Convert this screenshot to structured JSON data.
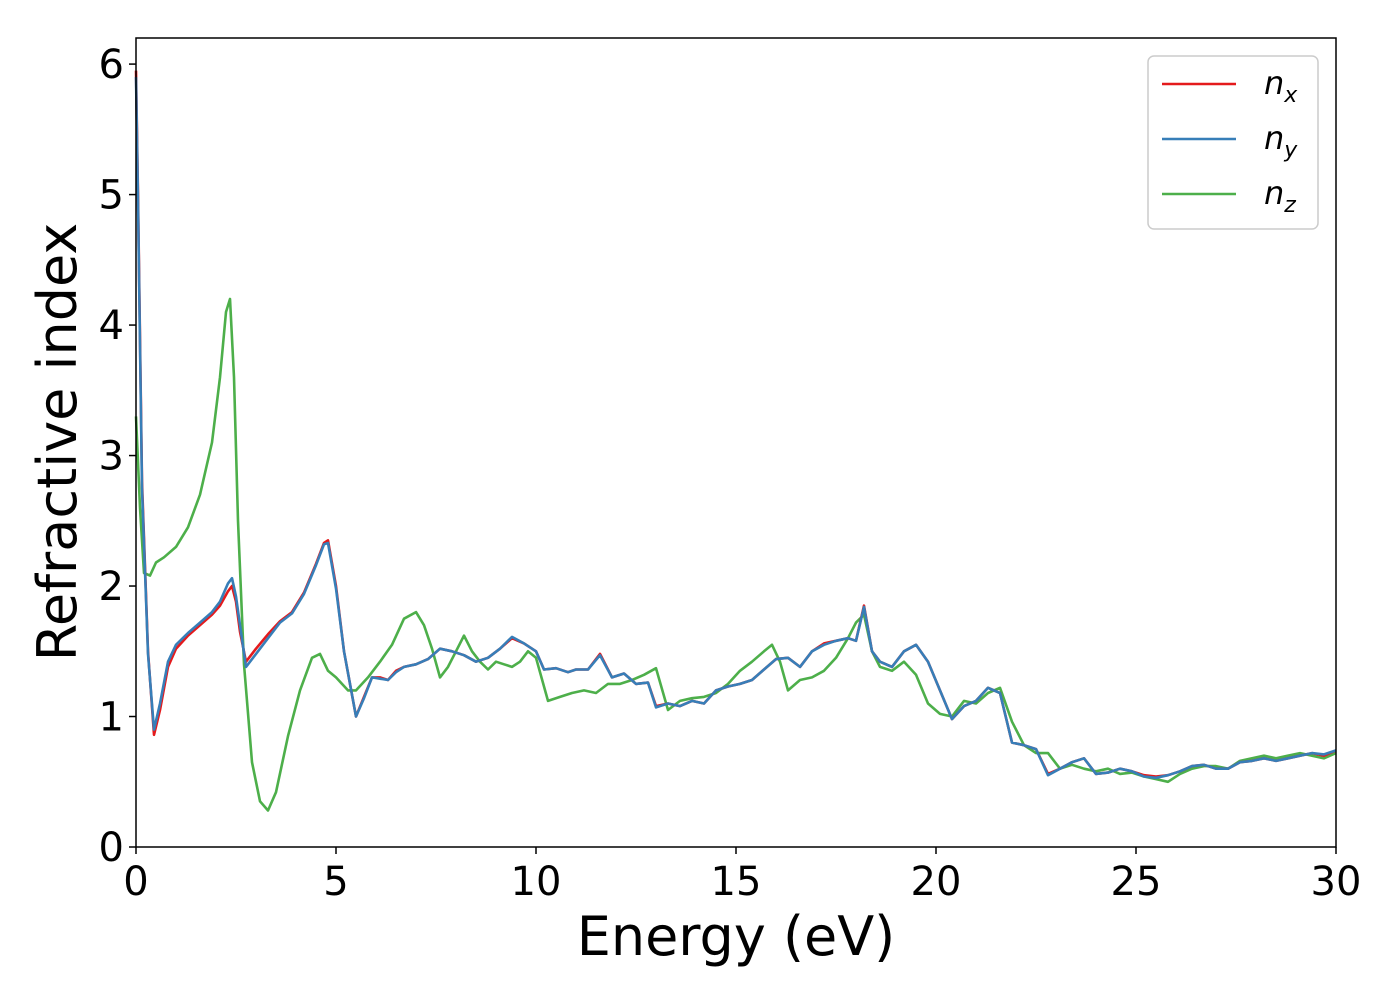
{
  "chart_data": {
    "type": "line",
    "xlabel": "Energy (eV)",
    "ylabel": "Refractive index",
    "xlim": [
      0,
      30
    ],
    "ylim": [
      0,
      6.2
    ],
    "xticks": [
      0,
      5,
      10,
      15,
      20,
      25,
      30
    ],
    "yticks": [
      0,
      1,
      2,
      3,
      4,
      5,
      6
    ],
    "grid": false,
    "legend_position": "top-right",
    "series": [
      {
        "name": "n_x",
        "label_main": "n",
        "label_sub": "x",
        "color": "#e41a1c",
        "x": [
          0,
          0.05,
          0.15,
          0.3,
          0.45,
          0.6,
          0.8,
          1.0,
          1.3,
          1.6,
          1.9,
          2.1,
          2.3,
          2.4,
          2.5,
          2.6,
          2.75,
          3.0,
          3.3,
          3.6,
          3.9,
          4.2,
          4.5,
          4.7,
          4.8,
          5.0,
          5.2,
          5.5,
          5.7,
          5.9,
          6.1,
          6.3,
          6.5,
          6.7,
          7.0,
          7.3,
          7.6,
          7.9,
          8.2,
          8.5,
          8.8,
          9.1,
          9.4,
          9.7,
          10.0,
          10.2,
          10.5,
          10.8,
          11.0,
          11.3,
          11.6,
          11.9,
          12.2,
          12.5,
          12.8,
          13.0,
          13.3,
          13.6,
          13.9,
          14.2,
          14.5,
          14.8,
          15.1,
          15.4,
          15.7,
          16.0,
          16.3,
          16.6,
          16.9,
          17.2,
          17.5,
          17.8,
          18.0,
          18.2,
          18.4,
          18.6,
          18.9,
          19.2,
          19.5,
          19.8,
          20.1,
          20.4,
          20.7,
          21.0,
          21.3,
          21.6,
          21.9,
          22.2,
          22.5,
          22.8,
          23.1,
          23.4,
          23.7,
          24.0,
          24.3,
          24.6,
          24.9,
          25.2,
          25.5,
          25.8,
          26.1,
          26.4,
          26.7,
          27.0,
          27.3,
          27.6,
          27.9,
          28.2,
          28.5,
          28.8,
          29.1,
          29.4,
          29.7,
          30.0
        ],
        "y": [
          5.95,
          5.0,
          2.8,
          1.5,
          0.86,
          1.05,
          1.38,
          1.52,
          1.62,
          1.7,
          1.78,
          1.85,
          1.96,
          2.0,
          1.88,
          1.65,
          1.42,
          1.52,
          1.63,
          1.73,
          1.8,
          1.95,
          2.17,
          2.33,
          2.35,
          2.0,
          1.5,
          1.0,
          1.15,
          1.3,
          1.3,
          1.28,
          1.35,
          1.38,
          1.4,
          1.44,
          1.52,
          1.5,
          1.47,
          1.42,
          1.45,
          1.52,
          1.6,
          1.56,
          1.5,
          1.36,
          1.37,
          1.34,
          1.36,
          1.36,
          1.48,
          1.3,
          1.33,
          1.25,
          1.26,
          1.08,
          1.1,
          1.08,
          1.12,
          1.1,
          1.2,
          1.23,
          1.25,
          1.28,
          1.36,
          1.44,
          1.45,
          1.38,
          1.5,
          1.56,
          1.58,
          1.6,
          1.58,
          1.85,
          1.5,
          1.42,
          1.38,
          1.5,
          1.55,
          1.42,
          1.2,
          0.98,
          1.08,
          1.12,
          1.22,
          1.18,
          0.8,
          0.78,
          0.75,
          0.56,
          0.6,
          0.65,
          0.68,
          0.56,
          0.57,
          0.6,
          0.58,
          0.55,
          0.54,
          0.55,
          0.58,
          0.62,
          0.63,
          0.6,
          0.6,
          0.65,
          0.66,
          0.68,
          0.66,
          0.68,
          0.7,
          0.72,
          0.7,
          0.74
        ]
      },
      {
        "name": "n_y",
        "label_main": "n",
        "label_sub": "y",
        "color": "#377eb8",
        "x": [
          0,
          0.05,
          0.15,
          0.3,
          0.45,
          0.6,
          0.8,
          1.0,
          1.3,
          1.6,
          1.9,
          2.1,
          2.3,
          2.4,
          2.5,
          2.6,
          2.75,
          3.0,
          3.3,
          3.6,
          3.9,
          4.2,
          4.5,
          4.7,
          4.8,
          5.0,
          5.2,
          5.5,
          5.7,
          5.9,
          6.1,
          6.3,
          6.5,
          6.7,
          7.0,
          7.3,
          7.6,
          7.9,
          8.2,
          8.5,
          8.8,
          9.1,
          9.4,
          9.7,
          10.0,
          10.2,
          10.5,
          10.8,
          11.0,
          11.3,
          11.6,
          11.9,
          12.2,
          12.5,
          12.8,
          13.0,
          13.3,
          13.6,
          13.9,
          14.2,
          14.5,
          14.8,
          15.1,
          15.4,
          15.7,
          16.0,
          16.3,
          16.6,
          16.9,
          17.2,
          17.5,
          17.8,
          18.0,
          18.2,
          18.4,
          18.6,
          18.9,
          19.2,
          19.5,
          19.8,
          20.1,
          20.4,
          20.7,
          21.0,
          21.3,
          21.6,
          21.9,
          22.2,
          22.5,
          22.8,
          23.1,
          23.4,
          23.7,
          24.0,
          24.3,
          24.6,
          24.9,
          25.2,
          25.5,
          25.8,
          26.1,
          26.4,
          26.7,
          27.0,
          27.3,
          27.6,
          27.9,
          28.2,
          28.5,
          28.8,
          29.1,
          29.4,
          29.7,
          30.0
        ],
        "y": [
          5.9,
          4.95,
          2.75,
          1.48,
          0.9,
          1.1,
          1.42,
          1.55,
          1.64,
          1.72,
          1.8,
          1.88,
          2.02,
          2.06,
          1.92,
          1.7,
          1.38,
          1.48,
          1.6,
          1.72,
          1.79,
          1.94,
          2.16,
          2.32,
          2.33,
          1.98,
          1.5,
          1.0,
          1.14,
          1.3,
          1.29,
          1.28,
          1.34,
          1.38,
          1.4,
          1.44,
          1.52,
          1.5,
          1.47,
          1.42,
          1.45,
          1.52,
          1.61,
          1.56,
          1.5,
          1.36,
          1.37,
          1.34,
          1.36,
          1.36,
          1.47,
          1.3,
          1.33,
          1.25,
          1.26,
          1.07,
          1.1,
          1.08,
          1.12,
          1.1,
          1.2,
          1.23,
          1.25,
          1.28,
          1.36,
          1.44,
          1.45,
          1.38,
          1.5,
          1.55,
          1.58,
          1.6,
          1.58,
          1.84,
          1.5,
          1.42,
          1.38,
          1.5,
          1.55,
          1.42,
          1.2,
          0.98,
          1.08,
          1.12,
          1.22,
          1.18,
          0.8,
          0.78,
          0.75,
          0.55,
          0.6,
          0.65,
          0.68,
          0.56,
          0.57,
          0.6,
          0.58,
          0.54,
          0.53,
          0.55,
          0.58,
          0.62,
          0.63,
          0.6,
          0.6,
          0.65,
          0.66,
          0.68,
          0.66,
          0.68,
          0.7,
          0.72,
          0.71,
          0.74
        ]
      },
      {
        "name": "n_z",
        "label_main": "n",
        "label_sub": "z",
        "color": "#4daf4a",
        "x": [
          0,
          0.1,
          0.2,
          0.35,
          0.5,
          0.7,
          1.0,
          1.3,
          1.6,
          1.9,
          2.1,
          2.25,
          2.35,
          2.45,
          2.55,
          2.7,
          2.9,
          3.1,
          3.3,
          3.5,
          3.8,
          4.1,
          4.4,
          4.6,
          4.8,
          5.0,
          5.3,
          5.5,
          5.8,
          6.1,
          6.4,
          6.7,
          7.0,
          7.2,
          7.4,
          7.6,
          7.8,
          8.0,
          8.2,
          8.4,
          8.6,
          8.8,
          9.0,
          9.2,
          9.4,
          9.6,
          9.8,
          10.0,
          10.3,
          10.6,
          10.9,
          11.2,
          11.5,
          11.8,
          12.1,
          12.4,
          12.7,
          13.0,
          13.3,
          13.6,
          13.9,
          14.2,
          14.5,
          14.8,
          15.1,
          15.4,
          15.7,
          15.9,
          16.1,
          16.3,
          16.6,
          16.9,
          17.2,
          17.5,
          17.8,
          18.0,
          18.2,
          18.4,
          18.6,
          18.9,
          19.2,
          19.5,
          19.8,
          20.1,
          20.4,
          20.7,
          21.0,
          21.3,
          21.6,
          21.9,
          22.2,
          22.5,
          22.8,
          23.1,
          23.4,
          23.7,
          24.0,
          24.3,
          24.6,
          24.9,
          25.2,
          25.5,
          25.8,
          26.1,
          26.4,
          26.7,
          27.0,
          27.3,
          27.6,
          27.9,
          28.2,
          28.5,
          28.8,
          29.1,
          29.4,
          29.7,
          30.0
        ],
        "y": [
          3.3,
          2.6,
          2.1,
          2.08,
          2.18,
          2.22,
          2.3,
          2.45,
          2.7,
          3.1,
          3.6,
          4.1,
          4.2,
          3.6,
          2.5,
          1.4,
          0.65,
          0.35,
          0.28,
          0.42,
          0.85,
          1.2,
          1.45,
          1.48,
          1.35,
          1.3,
          1.2,
          1.2,
          1.3,
          1.42,
          1.55,
          1.75,
          1.8,
          1.7,
          1.52,
          1.3,
          1.38,
          1.5,
          1.62,
          1.5,
          1.42,
          1.36,
          1.42,
          1.4,
          1.38,
          1.42,
          1.5,
          1.45,
          1.12,
          1.15,
          1.18,
          1.2,
          1.18,
          1.25,
          1.25,
          1.28,
          1.32,
          1.37,
          1.05,
          1.12,
          1.14,
          1.15,
          1.18,
          1.25,
          1.35,
          1.42,
          1.5,
          1.55,
          1.42,
          1.2,
          1.28,
          1.3,
          1.35,
          1.45,
          1.6,
          1.72,
          1.78,
          1.5,
          1.38,
          1.35,
          1.42,
          1.32,
          1.1,
          1.02,
          1.0,
          1.12,
          1.1,
          1.18,
          1.22,
          0.96,
          0.78,
          0.72,
          0.72,
          0.6,
          0.63,
          0.6,
          0.58,
          0.6,
          0.56,
          0.57,
          0.54,
          0.52,
          0.5,
          0.56,
          0.6,
          0.62,
          0.62,
          0.6,
          0.66,
          0.68,
          0.7,
          0.68,
          0.7,
          0.72,
          0.7,
          0.68,
          0.72
        ]
      }
    ]
  }
}
